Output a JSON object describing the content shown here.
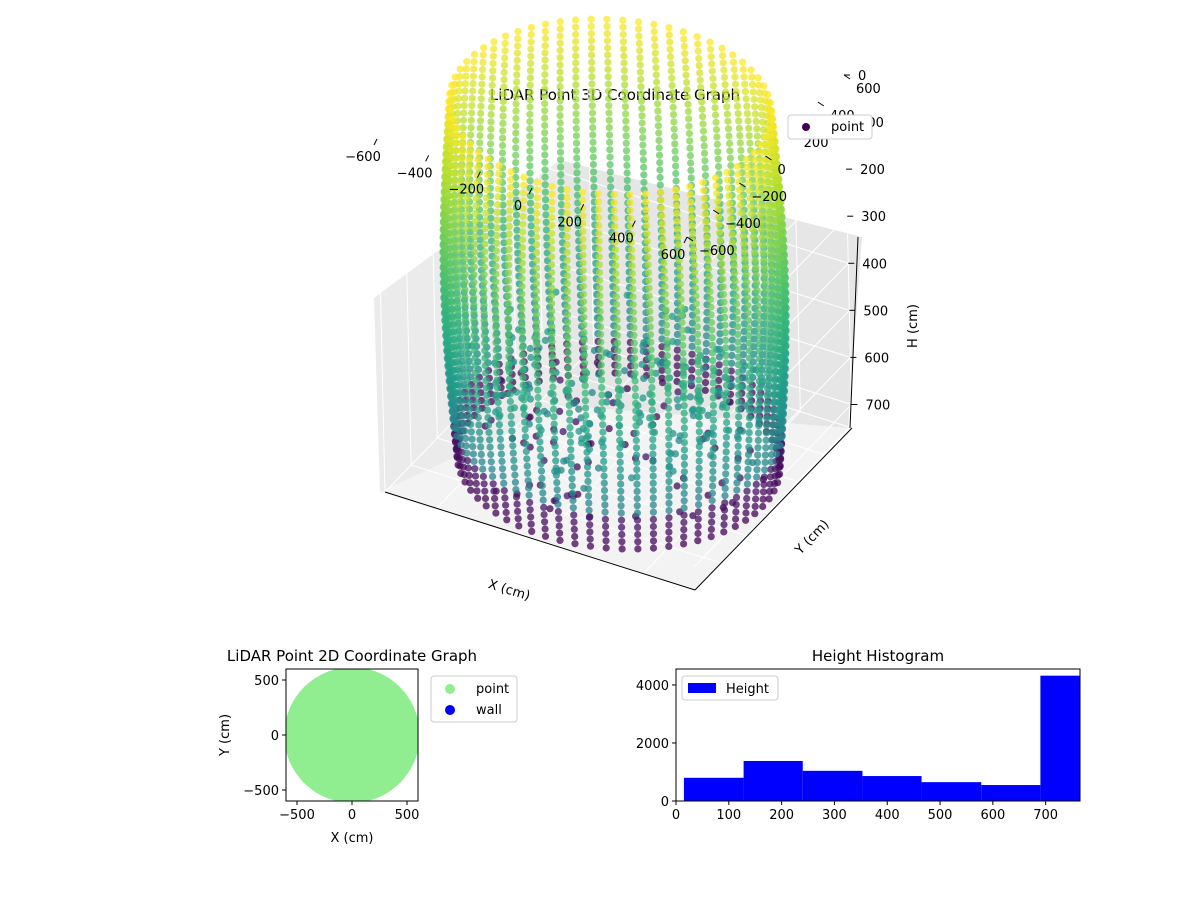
{
  "chart_data": [
    {
      "type": "scatter3d",
      "title": "LiDAR Point 3D Coordinate Graph",
      "xlabel": "X (cm)",
      "ylabel": "Y (cm)",
      "zlabel": "H (cm)",
      "xlim": [
        -600,
        600
      ],
      "ylim": [
        -600,
        600
      ],
      "zlim": [
        0,
        750
      ],
      "z_inverted": true,
      "x_ticks": [
        -600,
        -400,
        -200,
        0,
        200,
        400,
        600
      ],
      "y_ticks": [
        -600,
        -400,
        -200,
        0,
        200,
        400,
        600
      ],
      "z_ticks": [
        0,
        100,
        200,
        300,
        400,
        500,
        600,
        700
      ],
      "x_tick_labels": [
        "−600",
        "−400",
        "−200",
        "0",
        "200",
        "400",
        "600"
      ],
      "y_tick_labels": [
        "−600",
        "−400",
        "−200",
        "0",
        "200",
        "400",
        "600"
      ],
      "z_tick_labels": [
        "0",
        "100",
        "200",
        "300",
        "400",
        "500",
        "600",
        "700"
      ],
      "colormap": "viridis (by height)",
      "legend": {
        "labels": [
          "point"
        ],
        "placement": "upper-right",
        "colors": [
          "#440154"
        ]
      },
      "series": [
        {
          "name": "point",
          "shape": "cylindrical wall",
          "radius_cm": 580,
          "height_range_cm": [
            0,
            760
          ],
          "notes": "vertical columns of points around the wall with a roof cluster near the center"
        }
      ]
    },
    {
      "type": "scatter",
      "title": "LiDAR Point 2D Coordinate Graph",
      "xlabel": "X (cm)",
      "ylabel": "Y (cm)",
      "xlim": [
        -600,
        600
      ],
      "ylim": [
        -600,
        600
      ],
      "x_ticks": [
        -500,
        0,
        500
      ],
      "y_ticks": [
        -500,
        0,
        500
      ],
      "x_tick_labels": [
        "−500",
        "0",
        "500"
      ],
      "y_tick_labels": [
        "−500",
        "0",
        "500"
      ],
      "legend": {
        "labels": [
          "point",
          "wall"
        ],
        "placement": "outside-right",
        "colors": [
          "#90ee90",
          "#0000ff"
        ]
      },
      "series": [
        {
          "name": "point",
          "color": "#90ee90",
          "shape": "filled disc",
          "radius_cm": 580
        },
        {
          "name": "wall",
          "color": "#0000ff",
          "values": []
        }
      ]
    },
    {
      "type": "histogram",
      "title": "Height Histogram",
      "xlabel": "",
      "ylabel": "",
      "xlim": [
        0,
        765
      ],
      "ylim": [
        0,
        4550
      ],
      "x_ticks": [
        0,
        100,
        200,
        300,
        400,
        500,
        600,
        700
      ],
      "y_ticks": [
        0,
        2000,
        4000
      ],
      "x_tick_labels": [
        "0",
        "100",
        "200",
        "300",
        "400",
        "500",
        "600",
        "700"
      ],
      "y_tick_labels": [
        "0",
        "2000",
        "4000"
      ],
      "bar_color": "#0000ff",
      "legend": {
        "labels": [
          "Height"
        ],
        "placement": "upper-left"
      },
      "bins": [
        {
          "start": 15,
          "end": 128,
          "count": 800
        },
        {
          "start": 128,
          "end": 240,
          "count": 1380
        },
        {
          "start": 240,
          "end": 353,
          "count": 1040
        },
        {
          "start": 353,
          "end": 465,
          "count": 860
        },
        {
          "start": 465,
          "end": 578,
          "count": 650
        },
        {
          "start": 578,
          "end": 690,
          "count": 550
        },
        {
          "start": 690,
          "end": 765,
          "count": 4320
        }
      ]
    }
  ]
}
